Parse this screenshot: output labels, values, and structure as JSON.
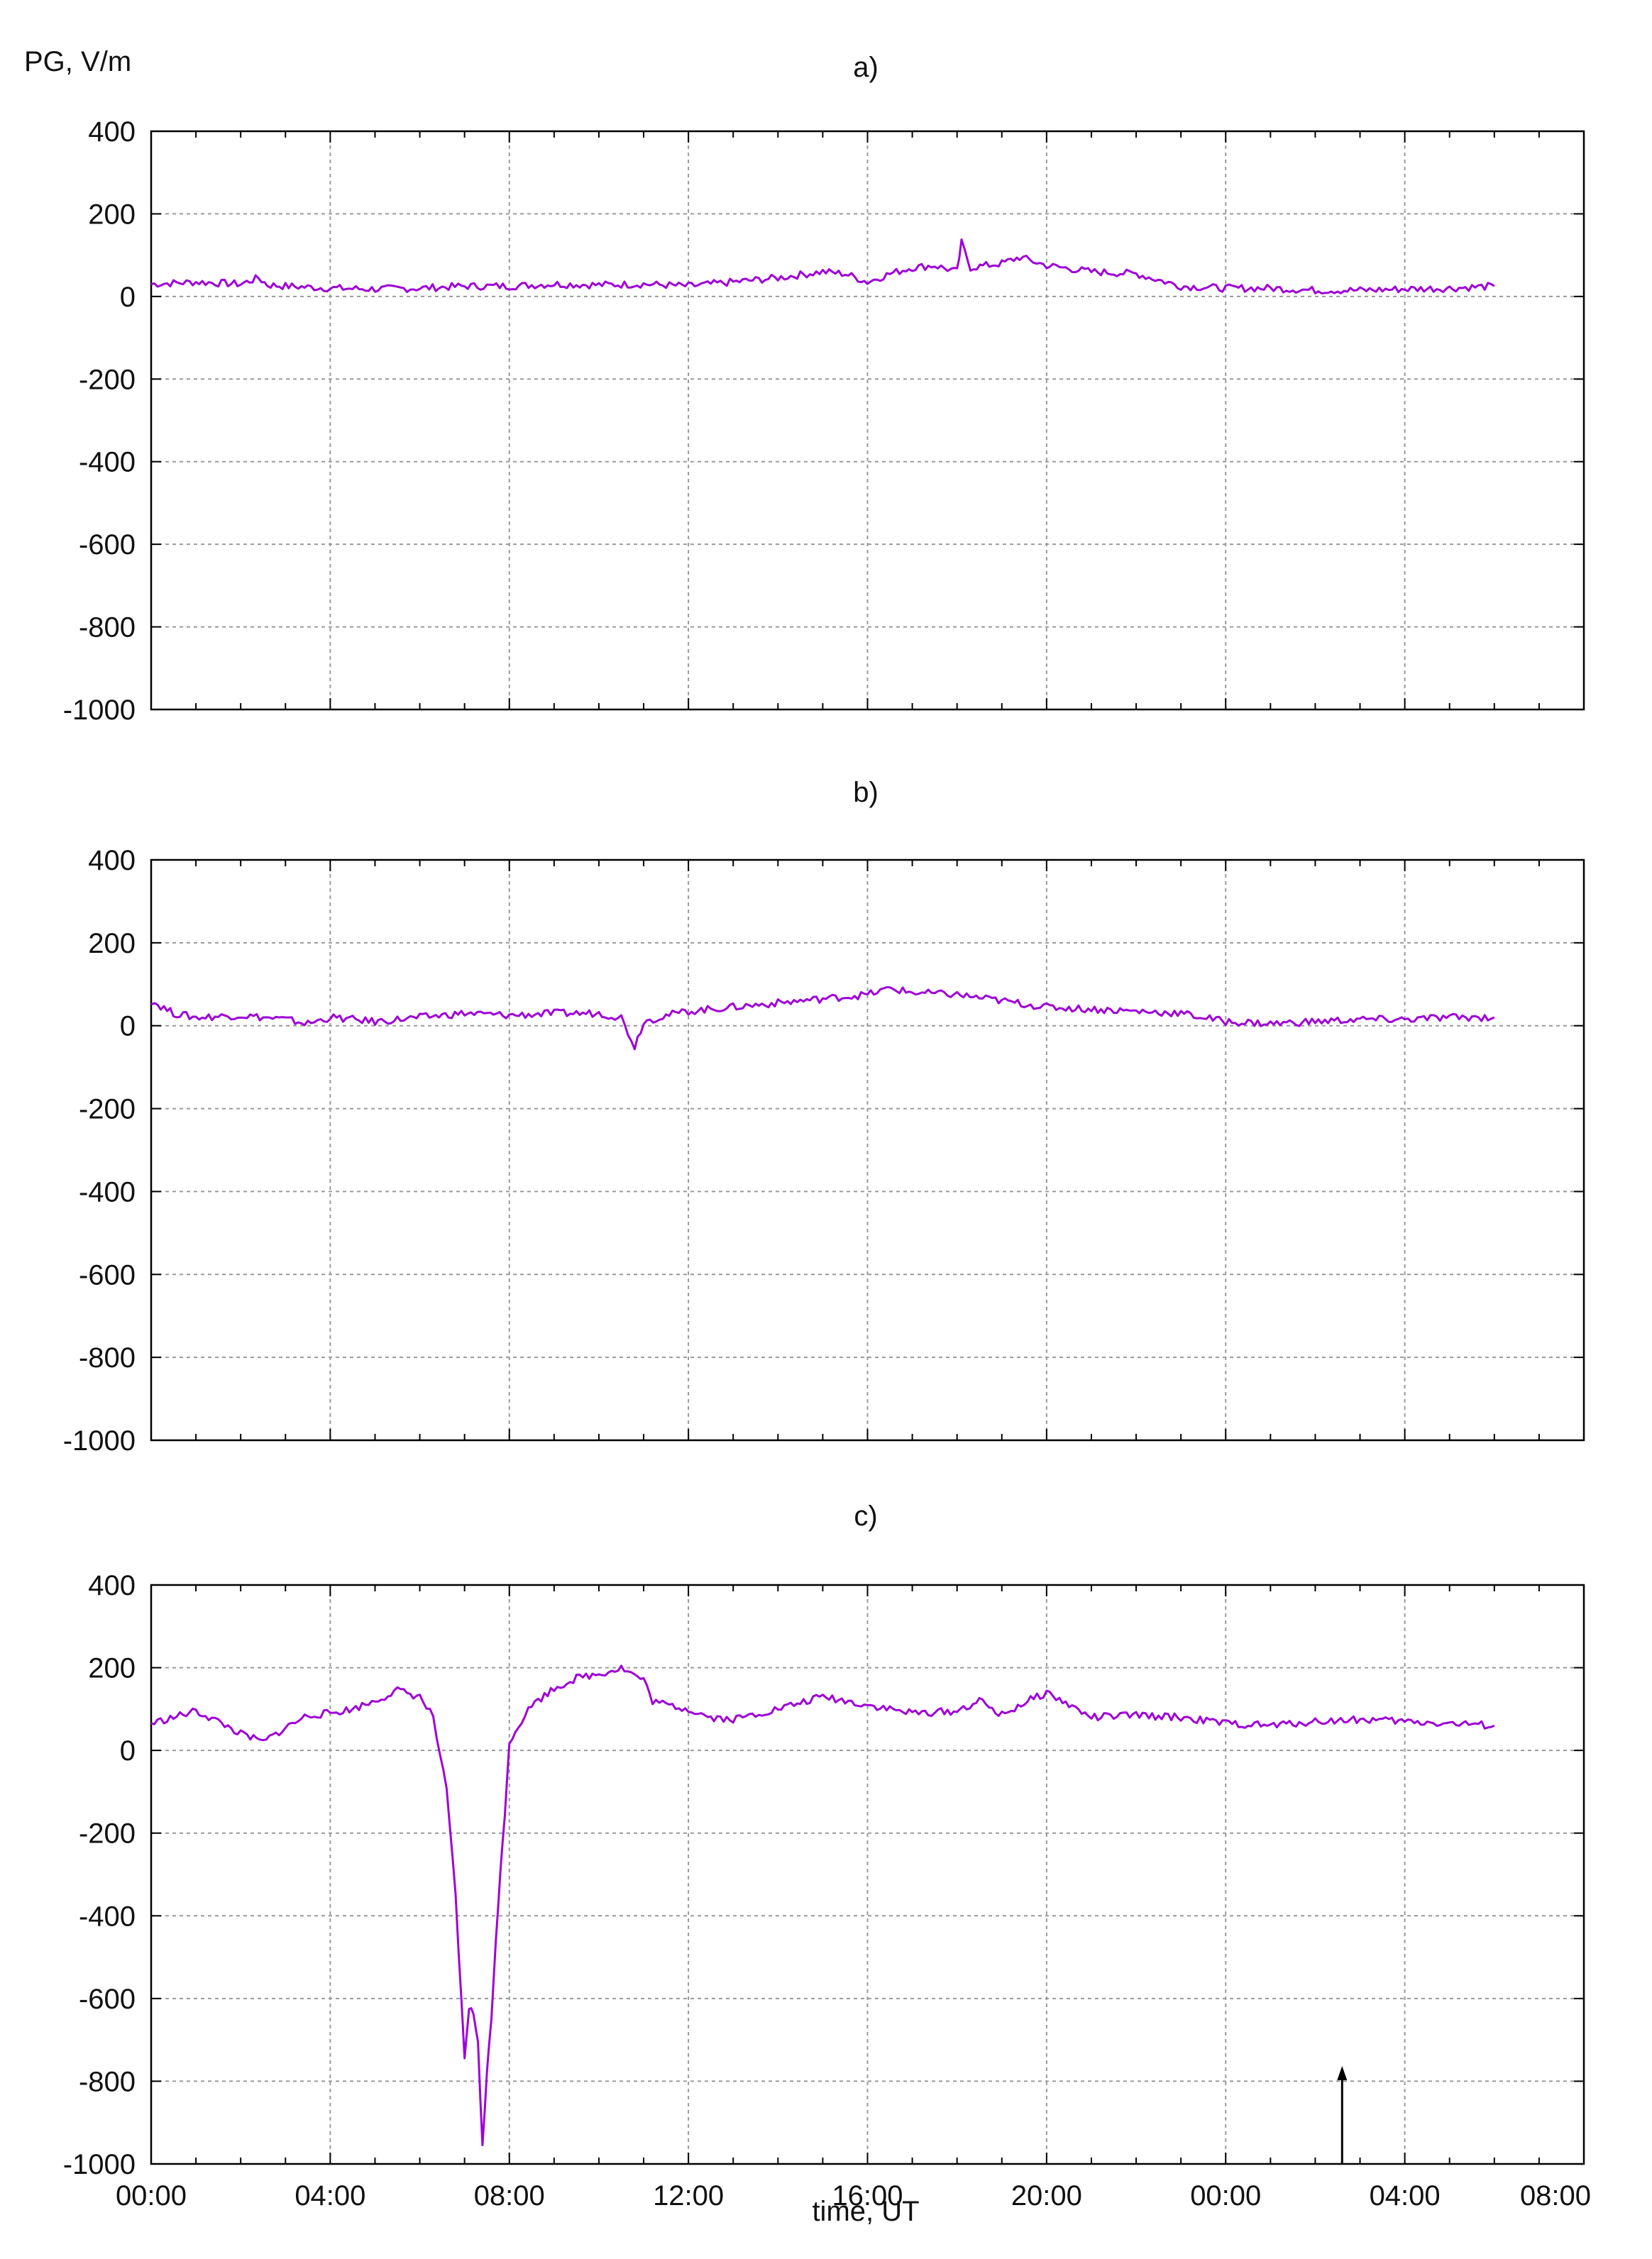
{
  "figure": {
    "ylabel": "PG, V/m",
    "xlabel": "time, UT"
  },
  "chart_data": [
    {
      "type": "line",
      "title": "a)",
      "x_unit": "hours from 00:00",
      "xlim": [
        0,
        32
      ],
      "ylim": [
        -1000,
        400
      ],
      "yticks": [
        400,
        200,
        0,
        -200,
        -400,
        -600,
        -800,
        -1000
      ],
      "xtick_labels": [
        "00:00",
        "04:00",
        "08:00",
        "12:00",
        "16:00",
        "20:00",
        "00:00",
        "04:00",
        "08:00"
      ],
      "grid": true,
      "series": [
        {
          "x": [
            0,
            1,
            2,
            2.4,
            2.6,
            3,
            4,
            5,
            6,
            7,
            8,
            9,
            10,
            11,
            12,
            13,
            14,
            15,
            15.5,
            16,
            16.5,
            17,
            17.5,
            18,
            18.1,
            18.3,
            19,
            19.4,
            20,
            21,
            22,
            23,
            24,
            25,
            26,
            27,
            28,
            29,
            30
          ],
          "y": [
            30,
            35,
            30,
            45,
            28,
            25,
            20,
            18,
            20,
            25,
            25,
            30,
            28,
            30,
            25,
            35,
            45,
            60,
            55,
            35,
            55,
            70,
            75,
            60,
            130,
            70,
            80,
            95,
            75,
            60,
            55,
            25,
            20,
            20,
            15,
            15,
            18,
            20,
            25
          ]
        }
      ]
    },
    {
      "type": "line",
      "title": "b)",
      "x_unit": "hours from 00:00",
      "xlim": [
        0,
        32
      ],
      "ylim": [
        -1000,
        400
      ],
      "yticks": [
        400,
        200,
        0,
        -200,
        -400,
        -600,
        -800,
        -1000
      ],
      "xtick_labels": [
        "00:00",
        "04:00",
        "08:00",
        "12:00",
        "16:00",
        "20:00",
        "00:00",
        "04:00",
        "08:00"
      ],
      "grid": true,
      "series": [
        {
          "x": [
            0,
            0.5,
            1,
            2,
            3,
            3.5,
            4,
            5,
            6,
            7,
            8,
            9,
            10,
            10.5,
            10.8,
            11,
            11.5,
            12,
            13,
            14,
            15,
            16,
            16.5,
            17,
            18,
            19,
            20,
            21,
            22,
            23,
            24,
            25,
            26,
            27,
            28,
            29,
            30
          ],
          "y": [
            60,
            30,
            20,
            25,
            15,
            5,
            20,
            10,
            20,
            30,
            25,
            30,
            30,
            20,
            -50,
            10,
            25,
            35,
            45,
            55,
            65,
            75,
            90,
            80,
            75,
            60,
            45,
            40,
            35,
            30,
            10,
            5,
            10,
            15,
            15,
            20,
            20
          ]
        }
      ]
    },
    {
      "type": "line",
      "title": "c)",
      "x_unit": "hours from 00:00",
      "xlim": [
        0,
        32
      ],
      "ylim": [
        -1000,
        400
      ],
      "yticks": [
        400,
        200,
        0,
        -200,
        -400,
        -600,
        -800,
        -1000
      ],
      "xtick_labels": [
        "00:00",
        "04:00",
        "08:00",
        "12:00",
        "16:00",
        "20:00",
        "00:00",
        "04:00",
        "08:00"
      ],
      "grid": true,
      "series": [
        {
          "x": [
            0,
            0.5,
            1,
            1.5,
            2,
            2.5,
            3,
            3.5,
            4,
            4.5,
            5,
            5.5,
            6,
            6.3,
            6.6,
            6.8,
            7,
            7.1,
            7.2,
            7.3,
            7.4,
            7.5,
            7.6,
            7.7,
            7.8,
            7.9,
            8,
            8.2,
            8.5,
            9,
            9.5,
            10,
            10.5,
            11,
            11.2,
            11.5,
            12,
            12.5,
            13,
            14,
            15,
            16,
            17,
            18,
            18.5,
            19,
            19.5,
            20,
            20.5,
            21,
            22,
            23,
            24,
            25,
            26,
            27,
            28,
            29,
            30
          ],
          "y": [
            65,
            80,
            95,
            70,
            40,
            20,
            55,
            85,
            90,
            100,
            120,
            145,
            130,
            80,
            -100,
            -350,
            -750,
            -620,
            -640,
            -700,
            -960,
            -780,
            -650,
            -450,
            -300,
            -150,
            20,
            60,
            110,
            150,
            175,
            185,
            200,
            170,
            120,
            110,
            100,
            80,
            75,
            100,
            130,
            110,
            90,
            95,
            120,
            85,
            115,
            140,
            110,
            80,
            85,
            80,
            65,
            60,
            70,
            75,
            70,
            65,
            60
          ]
        }
      ],
      "marker": {
        "type": "arrow",
        "x": 26.6,
        "y_from": -1000,
        "y_to": -770
      }
    }
  ]
}
